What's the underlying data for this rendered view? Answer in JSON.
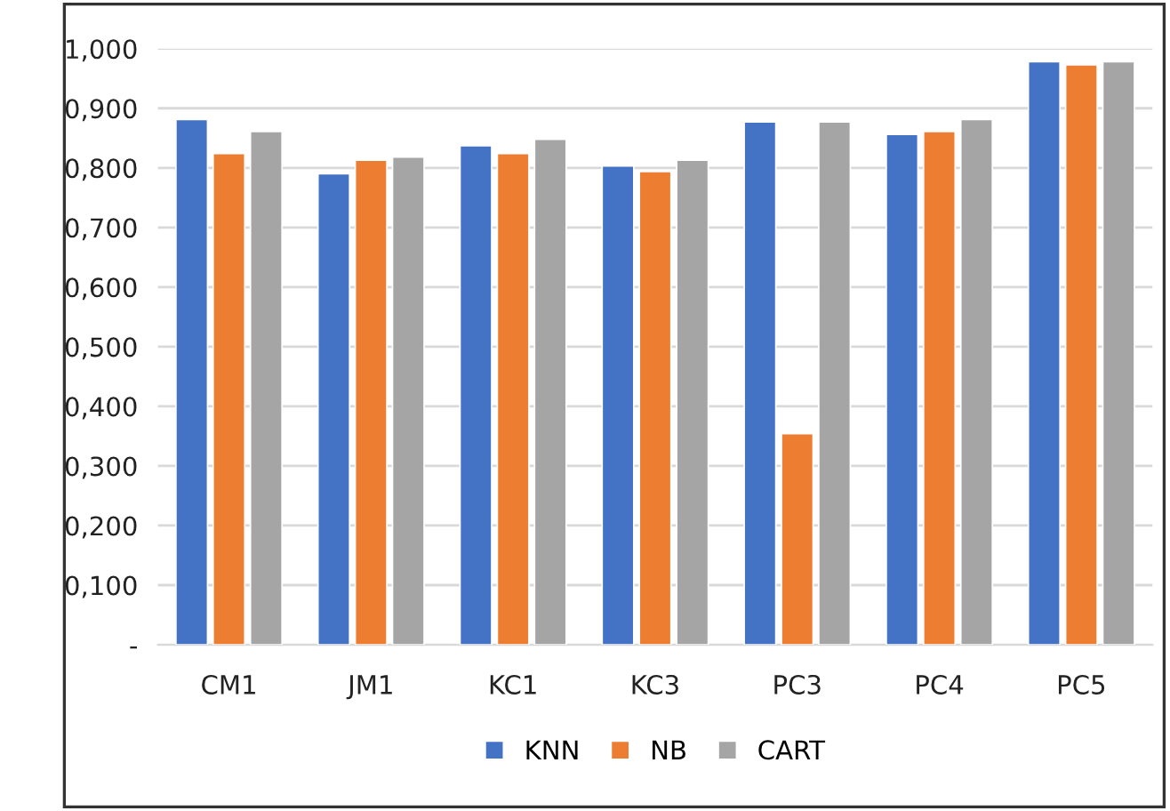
{
  "chart_data": {
    "type": "bar",
    "categories": [
      "CM1",
      "JM1",
      "KC1",
      "KC3",
      "PC3",
      "PC4",
      "PC5"
    ],
    "series": [
      {
        "name": "KNN",
        "color": "#4472c4",
        "values": [
          0.881,
          0.79,
          0.837,
          0.803,
          0.877,
          0.856,
          0.978
        ]
      },
      {
        "name": "NB",
        "color": "#ed7d31",
        "values": [
          0.824,
          0.813,
          0.824,
          0.794,
          0.354,
          0.861,
          0.973
        ]
      },
      {
        "name": "CART",
        "color": "#a5a5a5",
        "values": [
          0.861,
          0.818,
          0.848,
          0.813,
          0.877,
          0.881,
          0.978
        ]
      }
    ],
    "ylim": [
      0,
      1.0
    ],
    "yticks": [
      {
        "value": 0,
        "label": "-"
      },
      {
        "value": 0.1,
        "label": "0,100"
      },
      {
        "value": 0.2,
        "label": "0,200"
      },
      {
        "value": 0.3,
        "label": "0,300"
      },
      {
        "value": 0.4,
        "label": "0,400"
      },
      {
        "value": 0.5,
        "label": "0,500"
      },
      {
        "value": 0.6,
        "label": "0,600"
      },
      {
        "value": 0.7,
        "label": "0,700"
      },
      {
        "value": 0.8,
        "label": "0,800"
      },
      {
        "value": 0.9,
        "label": "0,900"
      },
      {
        "value": 1.0,
        "label": "1,000"
      }
    ],
    "grid": "y",
    "legend": "bottom"
  }
}
